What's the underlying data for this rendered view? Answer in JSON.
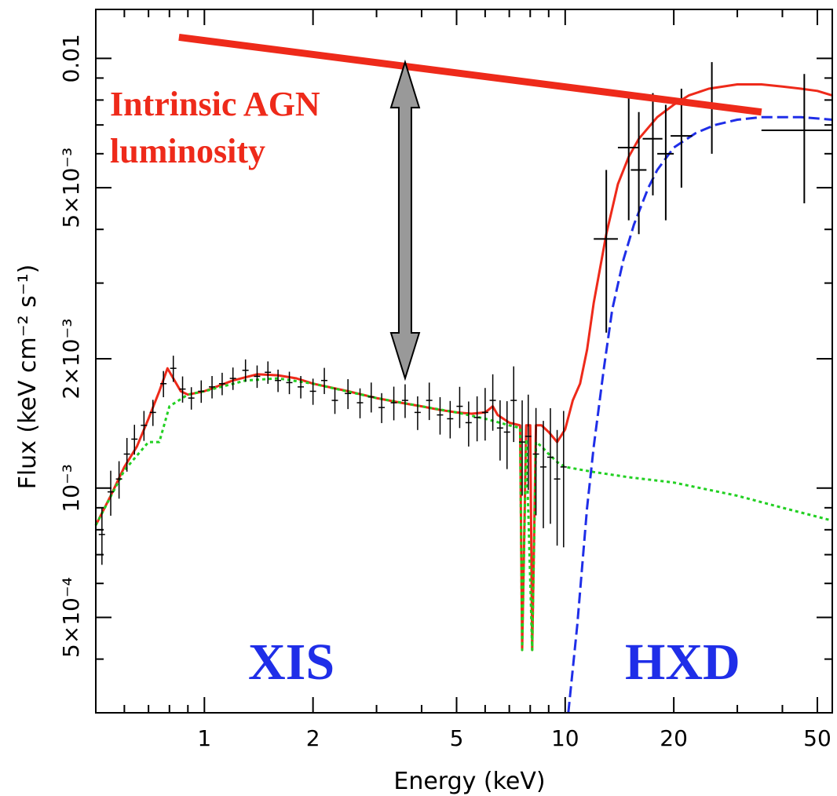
{
  "chart_data": {
    "type": "line",
    "xlabel": "Energy (keV)",
    "ylabel": "Flux (keV cm⁻² s⁻¹)",
    "x_scale": "log",
    "y_scale": "log",
    "xlim": [
      0.5,
      55
    ],
    "ylim": [
      0.0003,
      0.013
    ],
    "x_ticks": [
      {
        "value": 1,
        "label": "1"
      },
      {
        "value": 2,
        "label": "2"
      },
      {
        "value": 5,
        "label": "5"
      },
      {
        "value": 10,
        "label": "10"
      },
      {
        "value": 20,
        "label": "20"
      },
      {
        "value": 50,
        "label": "50"
      }
    ],
    "y_ticks": [
      {
        "value": 0.0005,
        "label": "5×10⁻⁴"
      },
      {
        "value": 0.001,
        "label": "10⁻³"
      },
      {
        "value": 0.002,
        "label": "2×10⁻³"
      },
      {
        "value": 0.005,
        "label": "5×10⁻³"
      },
      {
        "value": 0.01,
        "label": "0.01"
      }
    ],
    "annotations": {
      "intrinsic_label": [
        "Intrinsic AGN",
        "luminosity"
      ],
      "xis_label": "XIS",
      "hxd_label": "HXD"
    },
    "intrinsic_line": {
      "x": [
        0.85,
        35
      ],
      "y": [
        0.0112,
        0.0075
      ],
      "color": "#ee2a1a"
    },
    "arrow": {
      "x": 3.6,
      "y_from": 0.0018,
      "y_to": 0.0098,
      "color": "#999999"
    },
    "series": [
      {
        "role": "total model",
        "color": "#ee2a1a",
        "style": "solid",
        "x": [
          0.5,
          0.55,
          0.6,
          0.65,
          0.7,
          0.75,
          0.79,
          0.82,
          0.86,
          0.9,
          1.0,
          1.2,
          1.4,
          1.6,
          1.8,
          2.0,
          2.5,
          3.0,
          3.5,
          4.0,
          4.5,
          5.0,
          5.5,
          6.0,
          6.3,
          6.5,
          7.0,
          7.5,
          7.6,
          7.8,
          8.0,
          8.1,
          8.3,
          8.6,
          9.0,
          9.5,
          10.0,
          10.5,
          11.0,
          11.5,
          12.0,
          13.0,
          14.0,
          15.0,
          16.0,
          18.0,
          20.0,
          22.0,
          25.0,
          30.0,
          35.0,
          40.0,
          45.0,
          50.0,
          55.0
        ],
        "y": [
          0.00082,
          0.00096,
          0.00112,
          0.00125,
          0.00145,
          0.00168,
          0.0019,
          0.0018,
          0.00168,
          0.00165,
          0.00168,
          0.00178,
          0.00184,
          0.00183,
          0.0018,
          0.00175,
          0.00168,
          0.00162,
          0.00158,
          0.00155,
          0.00152,
          0.0015,
          0.00149,
          0.0015,
          0.00155,
          0.00148,
          0.00142,
          0.0014,
          0.00042,
          0.0014,
          0.0014,
          0.00042,
          0.0014,
          0.0014,
          0.00135,
          0.00128,
          0.00137,
          0.0016,
          0.00175,
          0.0021,
          0.0027,
          0.0039,
          0.0051,
          0.0059,
          0.0065,
          0.0073,
          0.0078,
          0.0082,
          0.0085,
          0.0087,
          0.0087,
          0.0086,
          0.0085,
          0.0084,
          0.0082
        ]
      },
      {
        "role": "soft component",
        "color": "#22d022",
        "style": "dotted",
        "x": [
          0.5,
          0.6,
          0.7,
          0.75,
          0.8,
          0.9,
          1.0,
          1.3,
          1.6,
          2.0,
          3.0,
          4.0,
          5.0,
          6.0,
          7.0,
          7.5,
          7.6,
          7.8,
          8.1,
          8.3,
          8.6,
          9.0,
          9.5,
          10.0,
          12.0,
          15.0,
          20.0,
          30.0,
          40.0,
          55.0
        ],
        "y": [
          0.00082,
          0.0011,
          0.00128,
          0.00128,
          0.00155,
          0.00165,
          0.00168,
          0.00178,
          0.0018,
          0.00175,
          0.00162,
          0.00155,
          0.0015,
          0.00145,
          0.0014,
          0.00138,
          0.00042,
          0.0013,
          0.00042,
          0.00128,
          0.00125,
          0.0012,
          0.00115,
          0.00112,
          0.00109,
          0.00106,
          0.00103,
          0.00096,
          0.0009,
          0.00084
        ]
      },
      {
        "role": "absorbed hard component",
        "color": "#1f2ee8",
        "style": "dashed",
        "x": [
          10.2,
          10.8,
          11.5,
          12.0,
          12.8,
          13.5,
          14.5,
          15.5,
          17.0,
          18.0,
          20.0,
          23.0,
          26.0,
          30.0,
          35.0,
          40.0,
          45.0,
          55.0
        ],
        "y": [
          0.0003,
          0.00048,
          0.0009,
          0.00125,
          0.0019,
          0.0026,
          0.0034,
          0.0041,
          0.005,
          0.0055,
          0.0062,
          0.0067,
          0.007,
          0.0072,
          0.0073,
          0.0073,
          0.0073,
          0.0072
        ]
      }
    ],
    "data_points": {
      "color": "#000000",
      "x": [
        0.52,
        0.55,
        0.58,
        0.61,
        0.64,
        0.68,
        0.72,
        0.77,
        0.82,
        0.87,
        0.92,
        0.98,
        1.05,
        1.12,
        1.2,
        1.3,
        1.4,
        1.5,
        1.6,
        1.72,
        1.85,
        2.0,
        2.15,
        2.3,
        2.5,
        2.7,
        2.9,
        3.1,
        3.35,
        3.6,
        3.9,
        4.2,
        4.5,
        4.8,
        5.1,
        5.4,
        5.7,
        6.0,
        6.3,
        6.6,
        6.9,
        7.2,
        7.6,
        7.9,
        8.3,
        8.7,
        9.1,
        9.5,
        9.9
      ],
      "y": [
        0.00078,
        0.00098,
        0.00105,
        0.0012,
        0.0013,
        0.0014,
        0.0015,
        0.00175,
        0.0019,
        0.0017,
        0.00162,
        0.00168,
        0.00172,
        0.00175,
        0.0018,
        0.00188,
        0.00182,
        0.00186,
        0.00178,
        0.00176,
        0.00172,
        0.00168,
        0.00178,
        0.0016,
        0.00166,
        0.00158,
        0.00163,
        0.00154,
        0.00158,
        0.0016,
        0.0015,
        0.0016,
        0.00148,
        0.00145,
        0.00155,
        0.00142,
        0.00146,
        0.0015,
        0.0016,
        0.00138,
        0.00135,
        0.0016,
        0.00128,
        0.00132,
        0.0012,
        0.00112,
        0.00118,
        0.00105,
        0.00112
      ],
      "xerr_frac": [
        0.02,
        0.02,
        0.02,
        0.02,
        0.02,
        0.02,
        0.02,
        0.02,
        0.02,
        0.02,
        0.02,
        0.02,
        0.02,
        0.02,
        0.02,
        0.02,
        0.02,
        0.02,
        0.02,
        0.02,
        0.02,
        0.02,
        0.02,
        0.02,
        0.02,
        0.02,
        0.02,
        0.02,
        0.02,
        0.02,
        0.02,
        0.02,
        0.02,
        0.02,
        0.02,
        0.02,
        0.02,
        0.02,
        0.02,
        0.02,
        0.02,
        0.02,
        0.02,
        0.02,
        0.02,
        0.02,
        0.02,
        0.02,
        0.02
      ],
      "yerr_frac": [
        0.15,
        0.12,
        0.1,
        0.09,
        0.08,
        0.08,
        0.07,
        0.07,
        0.07,
        0.07,
        0.06,
        0.06,
        0.06,
        0.06,
        0.06,
        0.06,
        0.06,
        0.06,
        0.06,
        0.06,
        0.06,
        0.07,
        0.07,
        0.07,
        0.08,
        0.08,
        0.08,
        0.08,
        0.09,
        0.09,
        0.09,
        0.1,
        0.1,
        0.1,
        0.11,
        0.12,
        0.12,
        0.14,
        0.15,
        0.16,
        0.18,
        0.2,
        0.25,
        0.25,
        0.28,
        0.28,
        0.3,
        0.3,
        0.35
      ]
    },
    "hxd_points": {
      "color": "#000000",
      "x": [
        13.0,
        15.0,
        16.0,
        17.5,
        19.0,
        21.0,
        25.5,
        46.0
      ],
      "y": [
        0.0038,
        0.0062,
        0.0055,
        0.0065,
        0.006,
        0.0066,
        0.0078,
        0.0068
      ],
      "x_lo": [
        12.0,
        14.0,
        15.2,
        16.4,
        18.0,
        19.6,
        23.2,
        35.0
      ],
      "x_hi": [
        14.0,
        16.0,
        16.8,
        18.6,
        20.0,
        22.5,
        28.0,
        55.0
      ],
      "y_lo": [
        0.0023,
        0.0042,
        0.0039,
        0.0048,
        0.0042,
        0.005,
        0.006,
        0.0046
      ],
      "y_hi": [
        0.0055,
        0.0083,
        0.0075,
        0.0083,
        0.0078,
        0.0085,
        0.0098,
        0.0092
      ]
    }
  }
}
